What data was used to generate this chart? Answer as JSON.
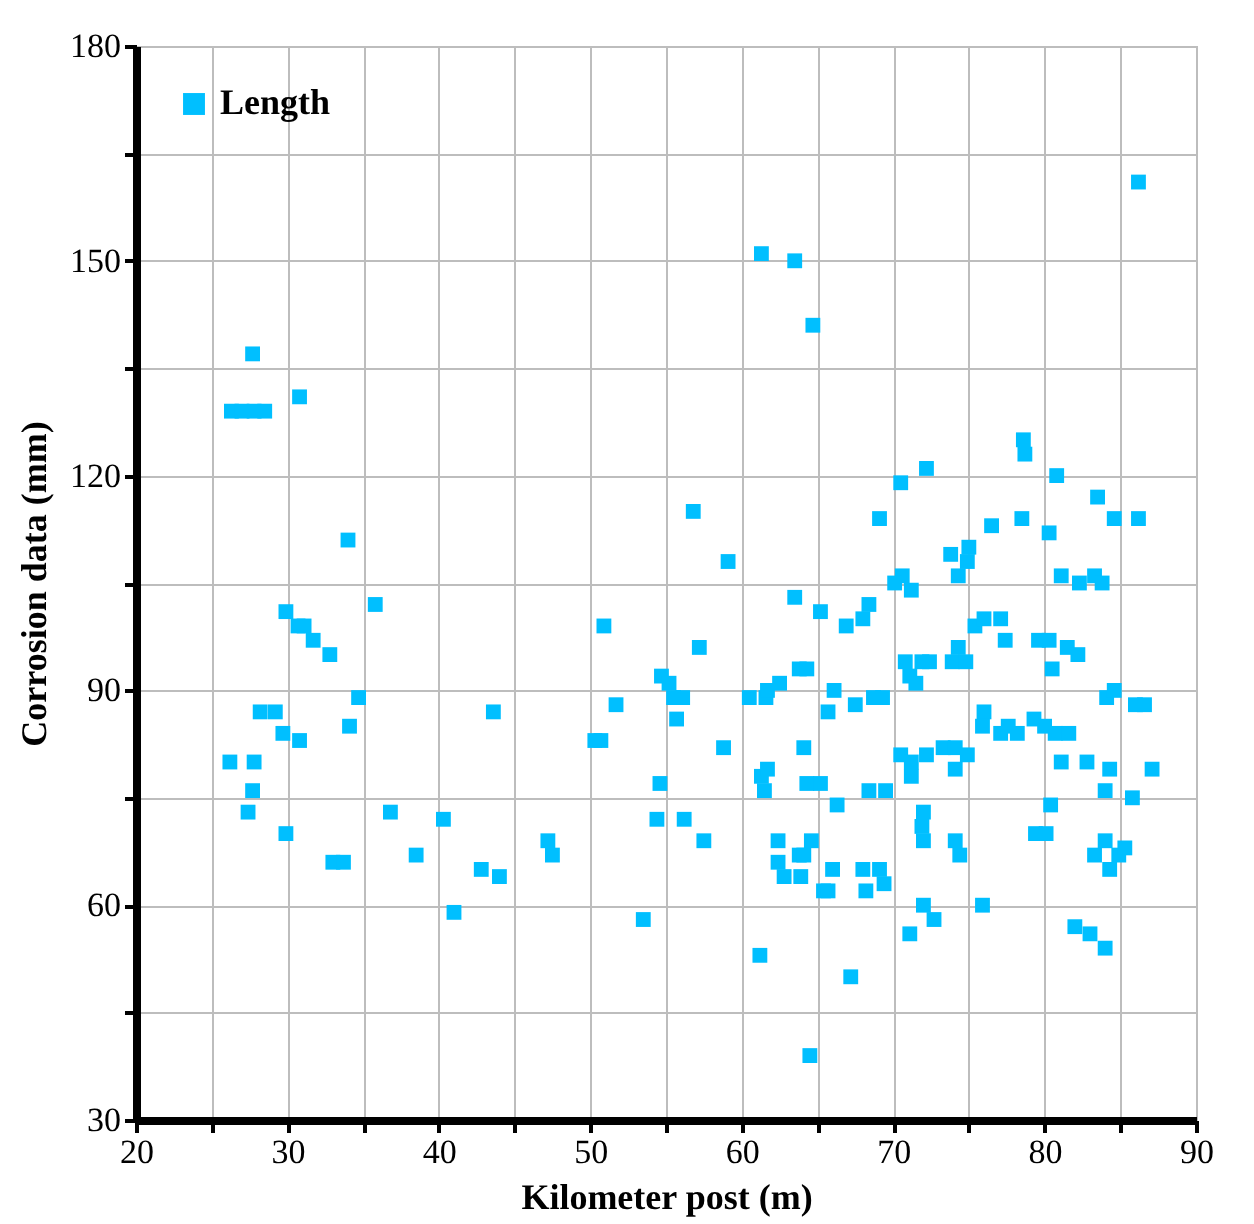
{
  "chart_data": {
    "type": "scatter",
    "xlabel": "Kilometer post (m)",
    "ylabel": "Corrosion data (mm)",
    "xlim": [
      20,
      90
    ],
    "ylim": [
      30,
      180
    ],
    "xticks": [
      20,
      {
        "value": 25,
        "label": null
      },
      30,
      {
        "value": 35,
        "label": null
      },
      40,
      {
        "value": 45,
        "label": null
      },
      50,
      {
        "value": 55,
        "label": null
      },
      60,
      {
        "value": 65,
        "label": null
      },
      70,
      {
        "value": 75,
        "label": null
      },
      80,
      {
        "value": 85,
        "label": null
      },
      90
    ],
    "yticks": [
      30,
      {
        "value": 45,
        "label": null
      },
      60,
      {
        "value": 75,
        "label": null
      },
      90,
      {
        "value": 105,
        "label": null
      },
      120,
      {
        "value": 135,
        "label": null
      },
      150,
      {
        "value": 165,
        "label": null
      },
      180
    ],
    "grid": true,
    "legend": "top left",
    "marker": "square",
    "series": [
      {
        "name": "Length",
        "color": "#00bfff",
        "x": [
          26.3,
          27.0,
          27.8,
          28.5,
          27.7,
          30.8,
          34.0,
          29.9,
          30.7,
          31.1,
          31.7,
          32.8,
          35.8,
          34.7,
          28.2,
          29.2,
          29.7,
          30.8,
          34.1,
          26.2,
          27.8,
          27.7,
          27.4,
          29.9,
          33.0,
          33.7,
          36.8,
          40.3,
          38.5,
          42.8,
          44.0,
          41.0,
          43.6,
          47.2,
          47.5,
          50.9,
          50.3,
          50.7,
          51.7,
          53.5,
          54.4,
          54.6,
          56.2,
          54.7,
          55.2,
          55.5,
          56.1,
          55.7,
          57.2,
          57.5,
          58.8,
          60.5,
          61.6,
          61.7,
          62.5,
          63.5,
          65.2,
          66.9,
          63.8,
          64.3,
          66.1,
          65.7,
          64.1,
          61.3,
          61.7,
          61.5,
          64.3,
          65.2,
          66.3,
          62.4,
          64.6,
          62.4,
          63.8,
          64.1,
          62.8,
          63.9,
          66.0,
          65.4,
          65.7,
          61.2,
          67.2,
          64.5,
          61.3,
          63.5,
          64.7,
          56.8,
          59.1,
          86.2,
          78.6,
          78.7,
          80.8,
          72.2,
          70.5,
          69.1,
          83.5,
          84.6,
          86.2,
          78.5,
          76.5,
          80.3,
          75.0,
          74.9,
          73.8,
          74.3,
          70.6,
          70.1,
          81.1,
          82.3,
          83.3,
          83.8,
          71.2,
          68.4,
          68.0,
          75.4,
          76.0,
          77.1,
          77.4,
          79.6,
          80.3,
          81.5,
          82.2,
          80.5,
          74.3,
          73.9,
          74.8,
          70.8,
          71.9,
          72.4,
          71.1,
          71.5,
          67.5,
          68.7,
          69.3,
          76.0,
          75.9,
          77.6,
          77.1,
          78.2,
          79.3,
          80.0,
          80.7,
          81.6,
          84.1,
          84.6,
          86.0,
          86.6,
          70.5,
          71.2,
          71.2,
          72.2,
          73.3,
          74.1,
          74.1,
          74.9,
          81.1,
          82.8,
          84.3,
          87.1,
          84.0,
          85.8,
          68.4,
          69.5,
          80.4,
          72.0,
          71.9,
          72.0,
          79.4,
          80.1,
          74.1,
          74.4,
          84.0,
          83.3,
          84.9,
          85.3,
          84.3,
          68.0,
          69.1,
          68.2,
          69.4,
          72.0,
          72.7,
          71.1,
          75.9,
          82.0,
          83.0,
          84.0
        ],
        "values": [
          129,
          129,
          129,
          129,
          137,
          131,
          111,
          101,
          99,
          99,
          97,
          95,
          102,
          89,
          87,
          87,
          84,
          83,
          85,
          80,
          80,
          76,
          73,
          70,
          66,
          66,
          73,
          72,
          67,
          65,
          64,
          59,
          87,
          69,
          67,
          99,
          83,
          83,
          88,
          58,
          72,
          77,
          72,
          92,
          91,
          89,
          89,
          86,
          96,
          69,
          82,
          89,
          89,
          90,
          91,
          103,
          101,
          99,
          93,
          93,
          90,
          87,
          82,
          78,
          79,
          76,
          77,
          77,
          74,
          69,
          69,
          66,
          67,
          67,
          64,
          64,
          65,
          62,
          62,
          53,
          50,
          39,
          151,
          150,
          141,
          115,
          108,
          161,
          125,
          123,
          120,
          121,
          119,
          114,
          117,
          114,
          114,
          114,
          113,
          112,
          110,
          108,
          109,
          106,
          106,
          105,
          106,
          105,
          106,
          105,
          104,
          102,
          100,
          99,
          100,
          100,
          97,
          97,
          97,
          96,
          95,
          93,
          96,
          94,
          94,
          94,
          94,
          94,
          92,
          91,
          88,
          89,
          89,
          87,
          85,
          85,
          84,
          84,
          86,
          85,
          84,
          84,
          89,
          90,
          88,
          88,
          81,
          80,
          78,
          81,
          82,
          82,
          79,
          81,
          80,
          80,
          79,
          79,
          76,
          75,
          76,
          76,
          74,
          73,
          71,
          69,
          70,
          70,
          69,
          67,
          69,
          67,
          67,
          68,
          65,
          65,
          65,
          62,
          63,
          60,
          58,
          56,
          60,
          57,
          56,
          54
        ]
      }
    ]
  }
}
